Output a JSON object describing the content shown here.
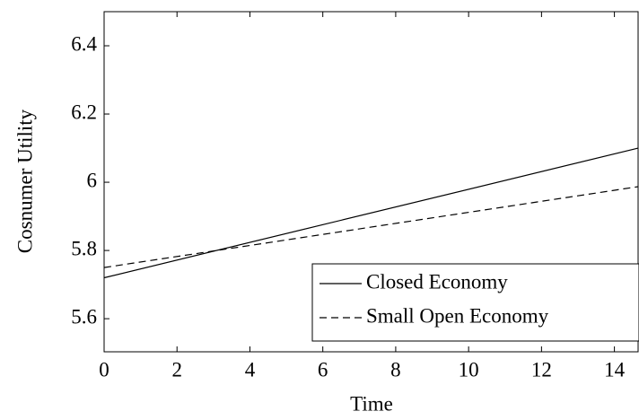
{
  "chart_data": {
    "type": "line",
    "x_label": "Time",
    "y_label": "Cosnumer Utility",
    "x": [
      0,
      14.65
    ],
    "series": [
      {
        "name": "Closed Economy",
        "color": "#000000",
        "dash": "solid",
        "values": [
          5.72,
          6.1
        ]
      },
      {
        "name": "Small Open Economy",
        "color": "#000000",
        "dash": "dashed",
        "values": [
          5.75,
          5.987
        ]
      }
    ],
    "xlim": [
      0,
      14.65
    ],
    "xticks": [
      0,
      2,
      4,
      6,
      8,
      10,
      12,
      14
    ],
    "ylim": [
      5.503,
      6.5
    ],
    "yticks": [
      5.6,
      5.8,
      6,
      6.2,
      6.4
    ],
    "legend": "lower right",
    "grid": false
  }
}
